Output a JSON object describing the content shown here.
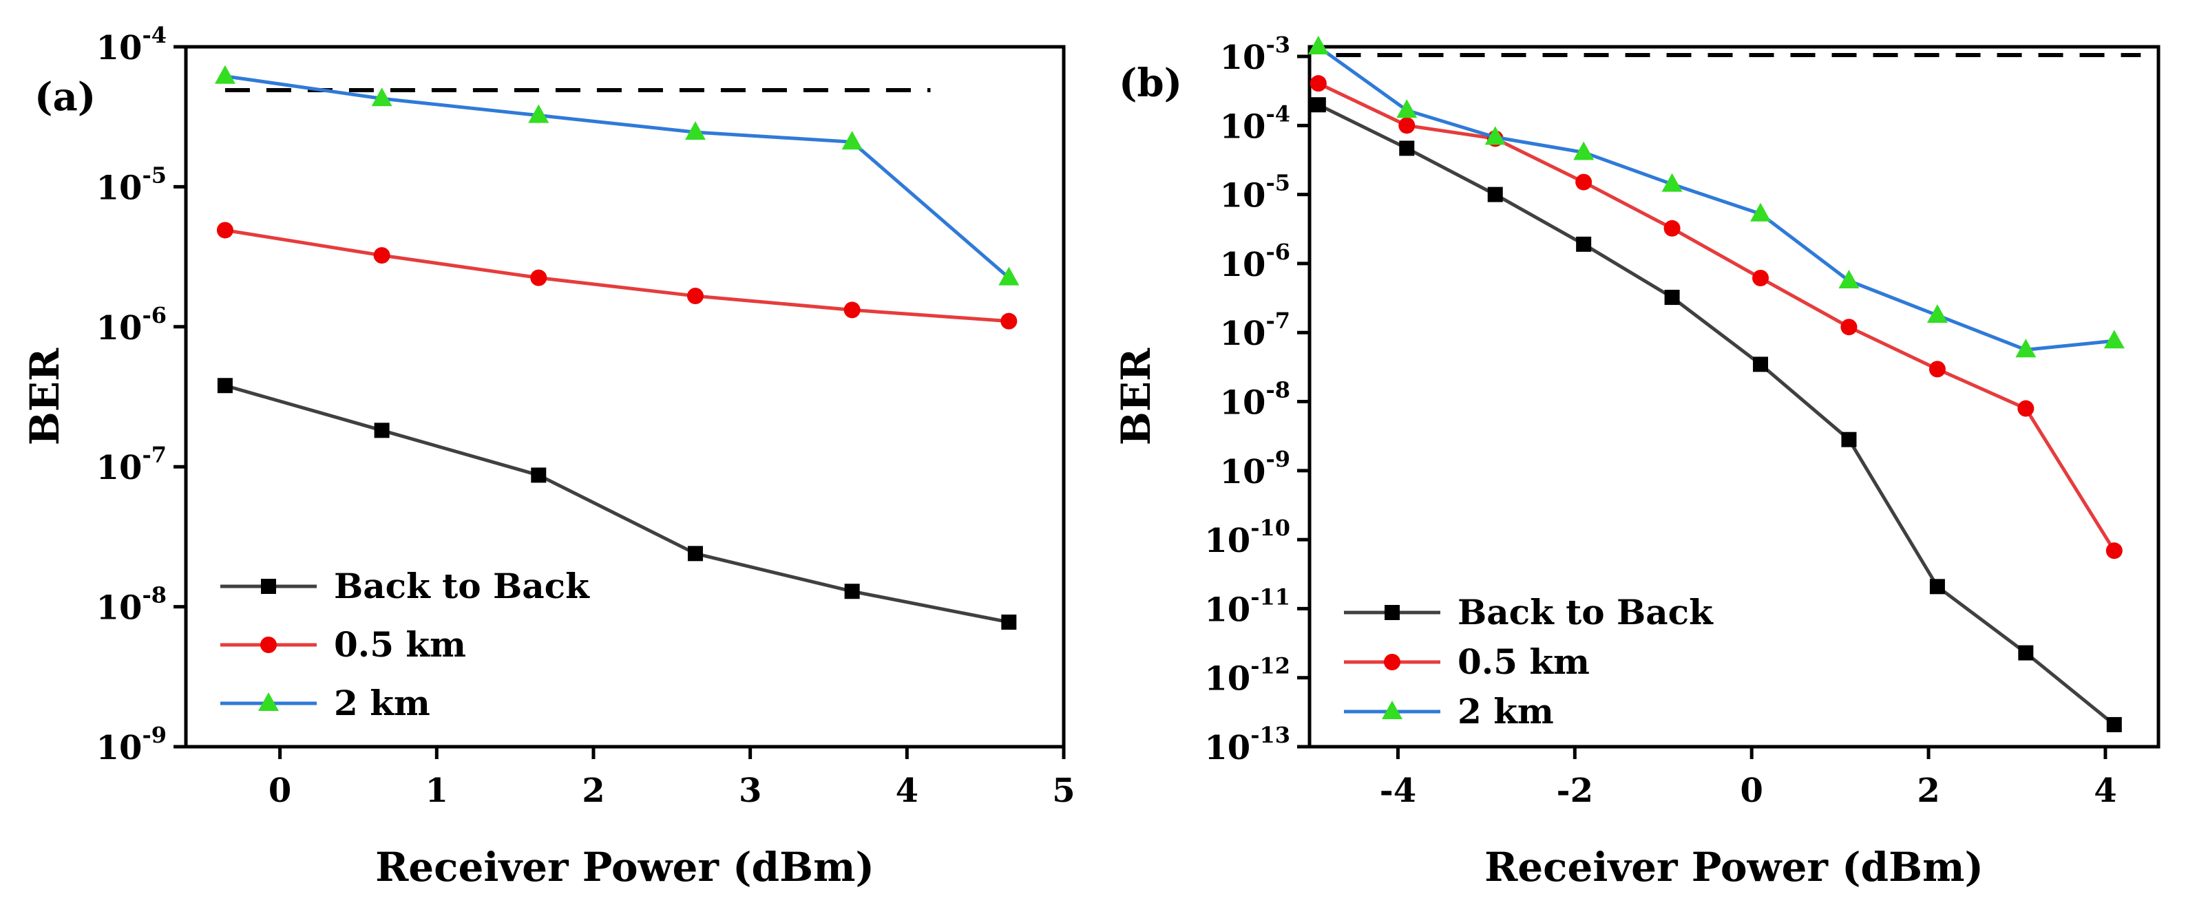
{
  "chart_data": [
    {
      "type": "line",
      "panel_label": "(a)",
      "title": "",
      "xlabel": "Receiver Power (dBm)",
      "ylabel": "BER",
      "y_scale": "log",
      "xlim": [
        -0.6,
        5
      ],
      "ylim_exponent": [
        -9,
        -4
      ],
      "x_ticks": [
        0,
        1,
        2,
        3,
        4,
        5
      ],
      "y_tick_base": "10",
      "y_ticks": [
        -9,
        -8,
        -7,
        -6,
        -5,
        -4
      ],
      "y_tick_exponents": [
        "-9",
        "-8",
        "-7",
        "-6",
        "-5",
        "-4"
      ],
      "threshold": {
        "exponent": -4.31,
        "style": "dashed",
        "color": "#000000",
        "x_range": [
          -0.35,
          4.15
        ]
      },
      "legend_position": "bottom-left",
      "grid": false,
      "series": [
        {
          "name": "Back to Back",
          "color": "#404040",
          "marker_color": "#000000",
          "marker": "square",
          "x": [
            -0.35,
            0.65,
            1.65,
            2.65,
            3.65,
            4.65
          ],
          "y_exponent": [
            -6.42,
            -6.74,
            -7.06,
            -7.62,
            -7.89,
            -8.11
          ]
        },
        {
          "name": "0.5 km",
          "color": "#e63c3c",
          "marker_color": "#ee0000",
          "marker": "circle",
          "x": [
            -0.35,
            0.65,
            1.65,
            2.65,
            3.65,
            4.65
          ],
          "y_exponent": [
            -5.31,
            -5.49,
            -5.65,
            -5.78,
            -5.88,
            -5.96
          ]
        },
        {
          "name": "2 km",
          "color": "#2f7ad8",
          "marker_color": "#33dd22",
          "marker": "triangle",
          "x": [
            -0.35,
            0.65,
            1.65,
            2.65,
            3.65,
            4.65
          ],
          "y_exponent": [
            -4.21,
            -4.37,
            -4.49,
            -4.61,
            -4.68,
            -5.65
          ]
        }
      ]
    },
    {
      "type": "line",
      "panel_label": "(b)",
      "title": "",
      "xlabel": "Receiver Power (dBm)",
      "ylabel": "BER",
      "y_scale": "log",
      "xlim": [
        -5,
        4.6
      ],
      "ylim_exponent": [
        -13,
        -2.86
      ],
      "x_ticks": [
        -4,
        -2,
        0,
        2,
        4
      ],
      "y_tick_base": "10",
      "y_ticks": [
        -13,
        -12,
        -11,
        -10,
        -9,
        -8,
        -7,
        -6,
        -5,
        -4,
        -3
      ],
      "y_tick_exponents": [
        "-13",
        "-12",
        "-11",
        "-10",
        "-9",
        "-8",
        "-7",
        "-6",
        "-5",
        "-4",
        "-3"
      ],
      "threshold": {
        "exponent": -2.98,
        "style": "dashed",
        "color": "#000000",
        "x_range": [
          -4.7,
          4.4
        ]
      },
      "legend_position": "bottom-left",
      "grid": false,
      "series": [
        {
          "name": "Back to Back",
          "color": "#404040",
          "marker_color": "#000000",
          "marker": "square",
          "x": [
            -4.9,
            -3.9,
            -2.9,
            -1.9,
            -0.9,
            0.1,
            1.1,
            2.1,
            3.1,
            4.1
          ],
          "y_exponent": [
            -3.7,
            -4.33,
            -5.0,
            -5.72,
            -6.49,
            -7.46,
            -8.55,
            -10.68,
            -11.64,
            -12.68
          ]
        },
        {
          "name": "0.5 km",
          "color": "#e63c3c",
          "marker_color": "#ee0000",
          "marker": "circle",
          "x": [
            -4.9,
            -3.9,
            -2.9,
            -1.9,
            -0.9,
            0.1,
            1.1,
            2.1,
            3.1,
            4.1
          ],
          "y_exponent": [
            -3.39,
            -4.0,
            -4.19,
            -4.82,
            -5.49,
            -6.21,
            -6.92,
            -7.53,
            -8.1,
            -10.16
          ]
        },
        {
          "name": "2 km",
          "color": "#2f7ad8",
          "marker_color": "#33dd22",
          "marker": "triangle",
          "x": [
            -4.9,
            -3.9,
            -2.9,
            -1.9,
            -0.9,
            0.1,
            1.1,
            2.1,
            3.1,
            4.1
          ],
          "y_exponent": [
            -2.86,
            -3.78,
            -4.17,
            -4.39,
            -4.85,
            -5.28,
            -6.25,
            -6.75,
            -7.25,
            -7.12
          ]
        }
      ]
    }
  ]
}
